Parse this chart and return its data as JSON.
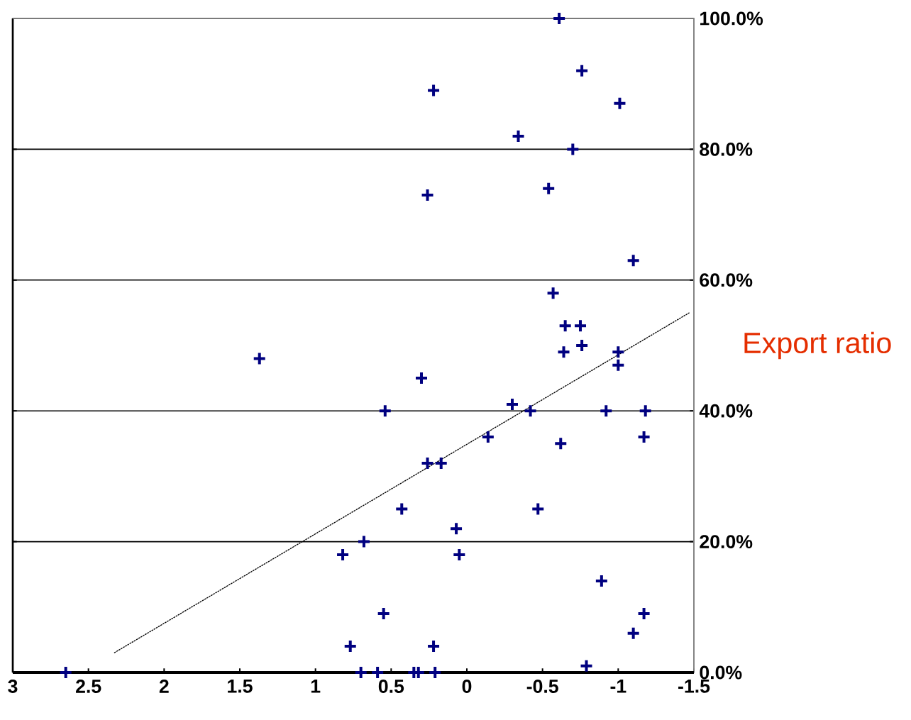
{
  "chart_data": {
    "type": "scatter",
    "ylabel": "Export ratio",
    "xlim": [
      3,
      -1.5
    ],
    "xticks": [
      3,
      2.5,
      2,
      1.5,
      1,
      0.5,
      0,
      -0.5,
      -1,
      -1.5
    ],
    "ylim": [
      0,
      100
    ],
    "yticks": [
      {
        "value": 0,
        "label": "0.0%"
      },
      {
        "value": 20,
        "label": "20.0%"
      },
      {
        "value": 40,
        "label": "40.0%"
      },
      {
        "value": 60,
        "label": "60.0%"
      },
      {
        "value": 80,
        "label": "80.0%"
      },
      {
        "value": 100,
        "label": "100.0%"
      }
    ],
    "grid": "y",
    "marker": "cross",
    "series": [
      {
        "color": "#000080",
        "x": [
          -0.61,
          -0.76,
          0.22,
          -1.01,
          -0.34,
          -0.7,
          -0.54,
          0.26,
          -1.1,
          -0.57,
          -0.65,
          -0.75,
          -0.64,
          -0.76,
          -1.0,
          -1.0,
          1.37,
          0.3,
          0.54,
          -0.3,
          -0.42,
          -0.92,
          -1.18,
          -0.14,
          -1.17,
          -0.62,
          0.26,
          0.17,
          0.43,
          -0.47,
          0.07,
          0.68,
          0.82,
          0.05,
          -0.89,
          0.55,
          -1.17,
          -1.1,
          0.77,
          0.22,
          -0.79,
          2.65,
          0.7,
          0.59,
          0.35,
          0.32,
          0.21
        ],
        "values": [
          100,
          92,
          89,
          87,
          82,
          80,
          74,
          73,
          63,
          58,
          53,
          53,
          49,
          50,
          49,
          47,
          48,
          45,
          40,
          41,
          40,
          40,
          40,
          36,
          36,
          35,
          32,
          32,
          25,
          25,
          22,
          20,
          18,
          18,
          14,
          9,
          9,
          6,
          4,
          4,
          1,
          0,
          0,
          0,
          0,
          0,
          0
        ]
      },
      {
        "type": "line",
        "color": "#000000",
        "marker": "none",
        "line_style": "dashed",
        "x": [
          2.33,
          -1.47
        ],
        "values": [
          3,
          55
        ]
      }
    ]
  }
}
